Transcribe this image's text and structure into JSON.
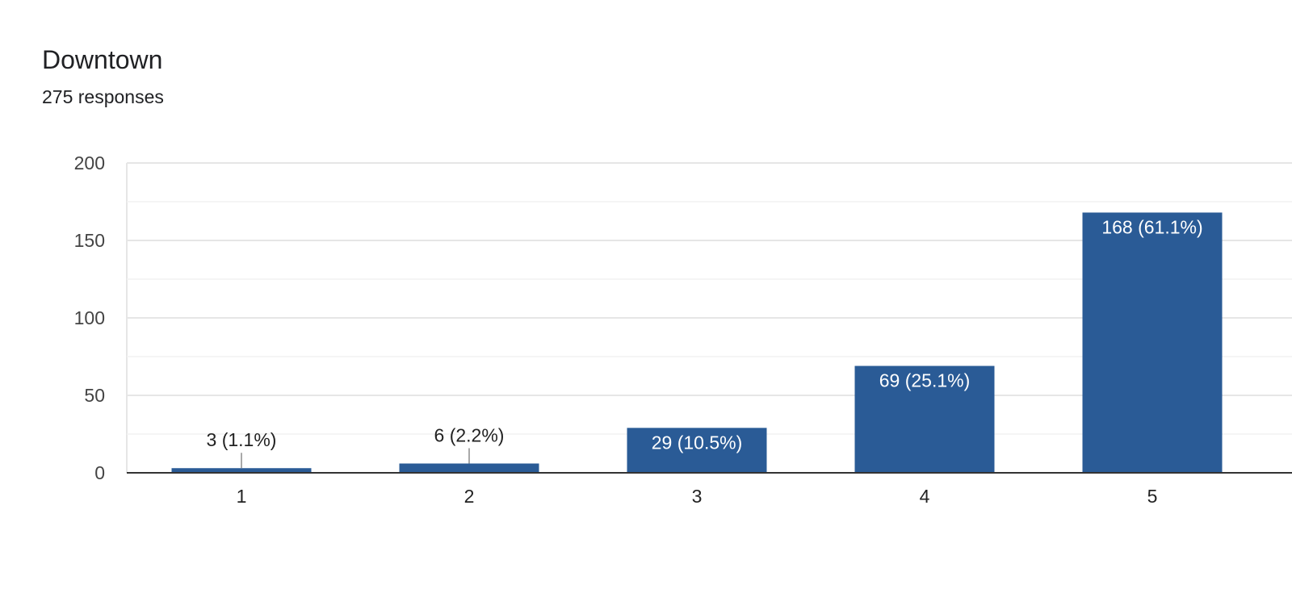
{
  "header": {
    "title": "Downtown",
    "subtitle": "275 responses"
  },
  "colors": {
    "bar": "#2a5b96",
    "grid_major": "#e6e6e6",
    "grid_minor": "#f2f2f2",
    "axis": "#333333",
    "leader": "#8c8c8c"
  },
  "chart_data": {
    "type": "bar",
    "title": "Downtown",
    "subtitle": "275 responses",
    "categories": [
      "1",
      "2",
      "3",
      "4",
      "5"
    ],
    "values": [
      3,
      6,
      29,
      69,
      168
    ],
    "data_labels": [
      "3 (1.1%)",
      "6 (2.2%)",
      "29 (10.5%)",
      "69 (25.1%)",
      "168 (61.1%)"
    ],
    "ylim": [
      0,
      200
    ],
    "yticks": [
      0,
      50,
      100,
      150,
      200
    ],
    "xlabel": "",
    "ylabel": "",
    "grid": true,
    "legend": "none"
  }
}
